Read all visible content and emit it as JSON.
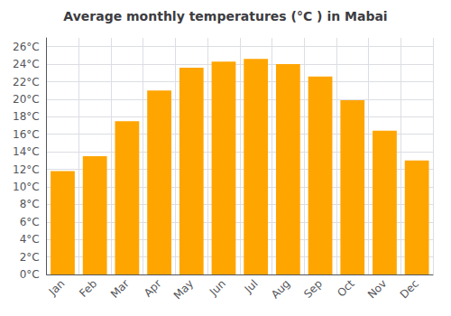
{
  "chart_data": {
    "type": "bar",
    "title": "Average monthly temperatures (°C ) in Mabai",
    "categories": [
      "Jan",
      "Feb",
      "Mar",
      "Apr",
      "May",
      "Jun",
      "Jul",
      "Aug",
      "Sep",
      "Oct",
      "Nov",
      "Dec"
    ],
    "values": [
      11.8,
      13.5,
      17.5,
      21.0,
      23.6,
      24.3,
      24.6,
      24.0,
      22.6,
      19.9,
      16.4,
      13.0
    ],
    "color": "#FFA500",
    "ylim": [
      0,
      27
    ],
    "yticks": [
      {
        "value": 0,
        "label": "0°C"
      },
      {
        "value": 2,
        "label": "2°C"
      },
      {
        "value": 4,
        "label": "4°C"
      },
      {
        "value": 6,
        "label": "6°C"
      },
      {
        "value": 8,
        "label": "8°C"
      },
      {
        "value": 10,
        "label": "10°C"
      },
      {
        "value": 12,
        "label": "12°C"
      },
      {
        "value": 14,
        "label": "14°C"
      },
      {
        "value": 16,
        "label": "16°C"
      },
      {
        "value": 18,
        "label": "18°C"
      },
      {
        "value": 20,
        "label": "20°C"
      },
      {
        "value": 22,
        "label": "22°C"
      },
      {
        "value": 24,
        "label": "24°C"
      },
      {
        "value": 26,
        "label": "26°C"
      }
    ],
    "grid": true
  }
}
